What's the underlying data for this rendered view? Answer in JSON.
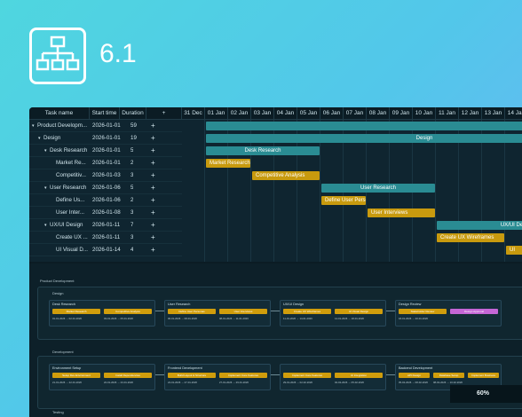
{
  "version": "6.1",
  "colors": {
    "accent_teal": "#2a8c93",
    "accent_gold": "#c89a0e",
    "accent_pink": "#c566d6"
  },
  "grid": {
    "headers": {
      "name": "Task name",
      "start": "Start time",
      "duration": "Duration",
      "add": "+"
    },
    "rows": [
      {
        "expander": "▾",
        "name": "Product Developm...",
        "start": "2026-01-01",
        "duration": "59",
        "add": "+"
      },
      {
        "expander": "▾",
        "name": "Design",
        "start": "2026-01-01",
        "duration": "19",
        "add": "+"
      },
      {
        "expander": "▾",
        "name": "Desk Research",
        "start": "2026-01-01",
        "duration": "5",
        "add": "+"
      },
      {
        "expander": "",
        "name": "Market Re...",
        "start": "2026-01-01",
        "duration": "2",
        "add": "+"
      },
      {
        "expander": "",
        "name": "Competitiv...",
        "start": "2026-01-03",
        "duration": "3",
        "add": "+"
      },
      {
        "expander": "▾",
        "name": "User Research",
        "start": "2026-01-06",
        "duration": "5",
        "add": "+"
      },
      {
        "expander": "",
        "name": "Define Us...",
        "start": "2026-01-06",
        "duration": "2",
        "add": "+"
      },
      {
        "expander": "",
        "name": "User Inter...",
        "start": "2026-01-08",
        "duration": "3",
        "add": "+"
      },
      {
        "expander": "▾",
        "name": "UX/UI Design",
        "start": "2026-01-11",
        "duration": "7",
        "add": "+"
      },
      {
        "expander": "",
        "name": "Create UX ...",
        "start": "2026-01-11",
        "duration": "3",
        "add": "+"
      },
      {
        "expander": "",
        "name": "UI Visual D...",
        "start": "2026-01-14",
        "duration": "4",
        "add": "+"
      }
    ]
  },
  "timeline": {
    "days": [
      "31 Dec",
      "01 Jan",
      "02 Jan",
      "03 Jan",
      "04 Jan",
      "05 Jan",
      "06 Jan",
      "07 Jan",
      "08 Jan",
      "09 Jan",
      "10 Jan",
      "11 Jan",
      "12 Jan",
      "13 Jan",
      "14 Jan"
    ],
    "bars": [
      {
        "label": "",
        "row": 0,
        "color": "teal",
        "start_day": 1,
        "span_days": 59
      },
      {
        "label": "Design",
        "row": 1,
        "color": "teal",
        "start_day": 1,
        "span_days": 19
      },
      {
        "label": "Desk Research",
        "row": 2,
        "color": "teal",
        "start_day": 1,
        "span_days": 5
      },
      {
        "label": "Market Research",
        "row": 3,
        "color": "gold",
        "start_day": 1,
        "span_days": 2
      },
      {
        "label": "Competitive Analysis",
        "row": 4,
        "color": "gold",
        "start_day": 3,
        "span_days": 3
      },
      {
        "label": "User Research",
        "row": 5,
        "color": "teal",
        "start_day": 6,
        "span_days": 5
      },
      {
        "label": "Define User Personas",
        "row": 6,
        "color": "gold",
        "start_day": 6,
        "span_days": 2
      },
      {
        "label": "User Interviews",
        "row": 7,
        "color": "gold",
        "start_day": 8,
        "span_days": 3
      },
      {
        "label": "UX/UI Design",
        "row": 8,
        "color": "teal",
        "start_day": 11,
        "span_days": 7
      },
      {
        "label": "Create UX Wireframes",
        "row": 9,
        "color": "gold",
        "start_day": 11,
        "span_days": 3
      },
      {
        "label": "UI",
        "row": 10,
        "color": "gold",
        "start_day": 14,
        "span_days": 4
      }
    ]
  },
  "board": {
    "root": "Product Development",
    "design": "Design",
    "development": "Development",
    "testing": "Testing",
    "groups": [
      {
        "name": "Desk Research",
        "cards": [
          {
            "title": "Market Research",
            "dates": "01-01-2026  →  02-01-2026"
          },
          {
            "title": "Competitive Analysis",
            "dates": "03-01-2026  →  05-01-2026"
          }
        ]
      },
      {
        "name": "User Research",
        "cards": [
          {
            "title": "Define User Personas",
            "dates": "06-01-2026  →  08-01-2026"
          },
          {
            "title": "User Interviews",
            "dates": "08-01-2026  →  11-01-2026"
          }
        ]
      },
      {
        "name": "UX/UI Design",
        "cards": [
          {
            "title": "Create UX Wireframes",
            "dates": "11-01-2026  →  14-01-2026"
          },
          {
            "title": "UI Visual Design",
            "dates": "14-01-2026  →  18-01-2026"
          }
        ]
      },
      {
        "name": "Design Review",
        "cards": [
          {
            "title": "Stakeholder Review",
            "dates": "18-01-2026  →  20-01-2026"
          },
          {
            "title": "Design Approval",
            "dates": ""
          }
        ]
      }
    ],
    "dev_groups": [
      {
        "name": "Environment Setup",
        "cards": [
          {
            "title": "Setup Dev Environment",
            "dates": "21-01-2026  →  22-01-2026"
          },
          {
            "title": "Install Dependencies",
            "dates": "22-01-2026  →  23-01-2026"
          }
        ]
      },
      {
        "name": "Frontend Development",
        "cards": [
          {
            "title": "Build Layout & Structure",
            "dates": "24-01-2026  →  27-01-2026"
          },
          {
            "title": "Implement Core Features",
            "dates": "27-01-2026  →  29-01-2026"
          }
        ]
      },
      {
        "name": "",
        "cards": [
          {
            "title": "Implement Core Features",
            "dates": "29-01-2026  →  02-02-2026"
          },
          {
            "title": "UI Integration",
            "dates": "02-02-2026  →  05-02-2026"
          }
        ]
      },
      {
        "name": "Backend Development",
        "cards": [
          {
            "title": "API Design",
            "dates": "05-02-2026  →  08-02-2026"
          },
          {
            "title": "Database Setup",
            "dates": "08-02-2026  →  10-02-2026"
          },
          {
            "title": "Implement Business",
            "dates": ""
          }
        ]
      }
    ],
    "zoom": "60%"
  }
}
